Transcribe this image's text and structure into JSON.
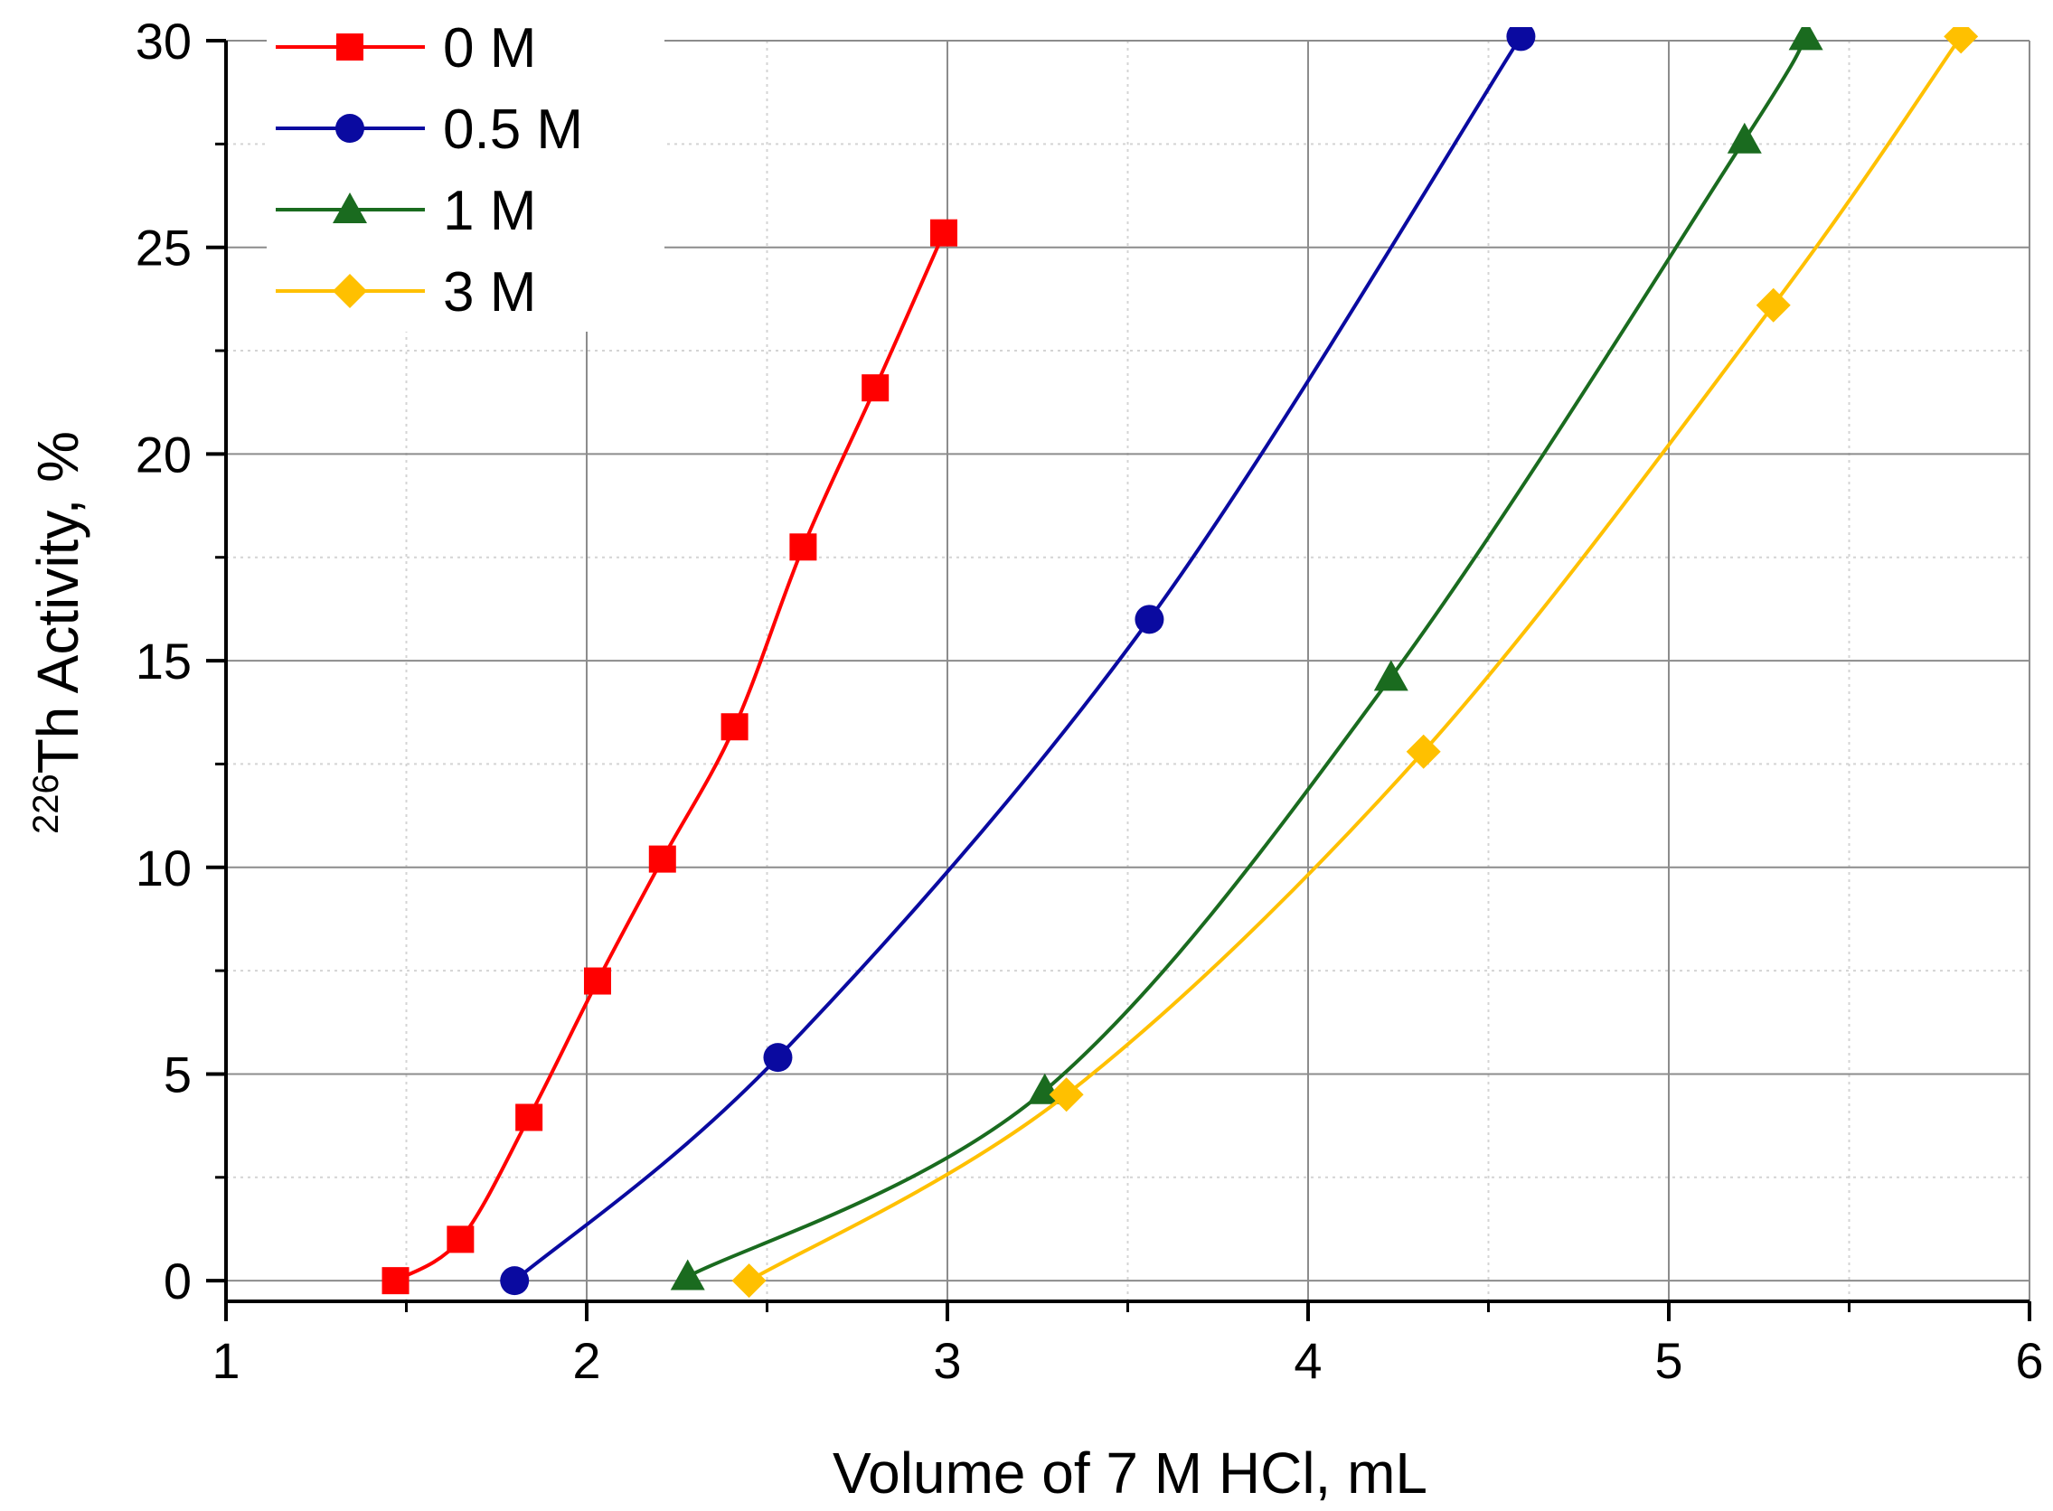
{
  "chart_data": {
    "type": "line",
    "xlabel": "Volume of 7 M HCl, mL",
    "ylabel": {
      "superscript": "226",
      "text": "Th Activity, %"
    },
    "xlim": [
      1,
      6
    ],
    "ylim": [
      -0.5,
      30
    ],
    "x_ticks": [
      "1",
      "2",
      "3",
      "4",
      "5",
      "6"
    ],
    "y_ticks": [
      "0",
      "5",
      "10",
      "15",
      "20",
      "25",
      "30"
    ],
    "grid": "major solid gray, minor dotted light gray",
    "legend_position": "top-left",
    "series": [
      {
        "name": "0 M",
        "color": "#ff0000",
        "marker": "square",
        "points": [
          [
            1.47,
            0.0
          ],
          [
            1.65,
            1.0
          ],
          [
            1.84,
            3.95
          ],
          [
            2.03,
            7.25
          ],
          [
            2.21,
            10.2
          ],
          [
            2.41,
            13.4
          ],
          [
            2.6,
            17.75
          ],
          [
            2.8,
            21.6
          ],
          [
            2.99,
            25.35
          ]
        ]
      },
      {
        "name": "0.5 M",
        "color": "#0a0aa0",
        "marker": "circle",
        "points": [
          [
            1.8,
            0.0
          ],
          [
            2.53,
            5.4
          ],
          [
            3.56,
            16.0
          ],
          [
            4.59,
            30.1
          ]
        ]
      },
      {
        "name": "1 M",
        "color": "#1a6b1f",
        "marker": "triangle",
        "points": [
          [
            2.28,
            0.1
          ],
          [
            3.27,
            4.6
          ],
          [
            4.23,
            14.6
          ],
          [
            5.21,
            27.6
          ],
          [
            5.38,
            30.1
          ]
        ]
      },
      {
        "name": "3 M",
        "color": "#ffc000",
        "marker": "diamond",
        "points": [
          [
            2.45,
            0.0
          ],
          [
            3.33,
            4.5
          ],
          [
            4.32,
            12.8
          ],
          [
            5.29,
            23.6
          ],
          [
            5.81,
            30.1
          ]
        ]
      }
    ]
  }
}
